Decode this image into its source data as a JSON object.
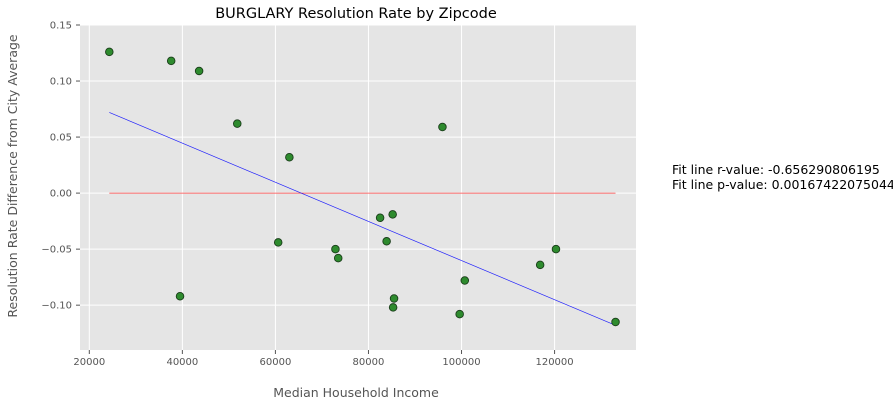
{
  "chart_data": {
    "type": "scatter",
    "title": "BURGLARY Resolution Rate by Zipcode",
    "xlabel": "Median Household Income",
    "ylabel": "Resolution Rate Difference from City Average",
    "xlim": [
      18000,
      137500
    ],
    "ylim": [
      -0.14,
      0.15
    ],
    "xticks": [
      20000,
      40000,
      60000,
      80000,
      100000,
      120000
    ],
    "xtick_labels": [
      "20000",
      "40000",
      "60000",
      "80000",
      "100000",
      "120000"
    ],
    "yticks": [
      0.15,
      0.1,
      0.05,
      0.0,
      -0.05,
      -0.1
    ],
    "ytick_labels": [
      "0.15",
      "0.10",
      "0.05",
      "0.00",
      "−0.05",
      "−0.10"
    ],
    "grid": true,
    "background_color": "#e5e5e5",
    "grid_color": "#ffffff",
    "points": {
      "color": "#2e8b2e",
      "edgecolor": "#1a3d1a",
      "x": [
        24300,
        37600,
        43600,
        51800,
        63000,
        95900,
        60600,
        72900,
        73500,
        82500,
        83900,
        85200,
        39500,
        85500,
        85300,
        99600,
        100700,
        116900,
        120300,
        133100
      ],
      "y": [
        0.126,
        0.118,
        0.109,
        0.062,
        0.032,
        0.059,
        -0.044,
        -0.05,
        -0.058,
        -0.022,
        -0.043,
        -0.019,
        -0.092,
        -0.094,
        -0.102,
        -0.108,
        -0.078,
        -0.064,
        -0.05,
        -0.115
      ]
    },
    "fit_line": {
      "color": "#0000ff",
      "x": [
        24300,
        133100
      ],
      "y": [
        0.072,
        -0.118
      ]
    },
    "zero_line": {
      "color": "#ff0000",
      "x": [
        24300,
        133100
      ],
      "y": [
        0.0,
        0.0
      ]
    },
    "annotations": [
      "Fit line r-value: -0.656290806195",
      "Fit line p-value: 0.00167422075044"
    ]
  }
}
